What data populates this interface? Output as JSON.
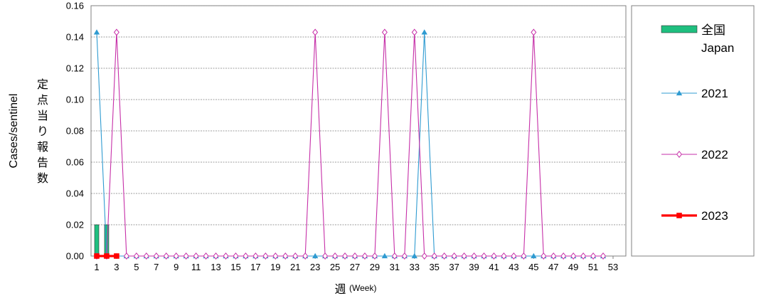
{
  "chart_data": {
    "type": "line",
    "ylabel_en": "Cases/sentinel",
    "ylabel_ja": "定点当り報告数",
    "xlabel_ja": "週",
    "xlabel_en": "(Week)",
    "xlim": [
      1,
      53
    ],
    "ylim": [
      0,
      0.16
    ],
    "y_ticks": [
      "0.00",
      "0.02",
      "0.04",
      "0.06",
      "0.08",
      "0.10",
      "0.12",
      "0.14",
      "0.16"
    ],
    "x_ticks": [
      "1",
      "3",
      "5",
      "7",
      "9",
      "11",
      "13",
      "15",
      "17",
      "19",
      "21",
      "23",
      "25",
      "27",
      "29",
      "31",
      "33",
      "35",
      "37",
      "39",
      "41",
      "43",
      "45",
      "47",
      "49",
      "51",
      "53"
    ],
    "grid": true,
    "legend_position": "right",
    "bars": {
      "name_ja": "全国",
      "name_en": "Japan",
      "color": "#1fbf7f",
      "x": [
        1,
        2
      ],
      "values": [
        0.02,
        0.02
      ]
    },
    "series": [
      {
        "name": "2021",
        "color": "#2f9bd1",
        "marker": "triangle",
        "x": [
          1,
          2,
          3,
          4,
          5,
          6,
          7,
          8,
          9,
          10,
          11,
          12,
          13,
          14,
          15,
          16,
          17,
          18,
          19,
          20,
          21,
          22,
          23,
          24,
          25,
          26,
          27,
          28,
          29,
          30,
          31,
          32,
          33,
          34,
          35,
          36,
          37,
          38,
          39,
          40,
          41,
          42,
          43,
          44,
          45,
          46,
          47,
          48,
          49,
          50,
          51,
          52
        ],
        "values": [
          0.143,
          0,
          0,
          0,
          0,
          0,
          0,
          0,
          0,
          0,
          0,
          0,
          0,
          0,
          0,
          0,
          0,
          0,
          0,
          0,
          0,
          0,
          0,
          0,
          0,
          0,
          0,
          0,
          0,
          0,
          0,
          0,
          0,
          0.143,
          0,
          0,
          0,
          0,
          0,
          0,
          0,
          0,
          0,
          0,
          0,
          0,
          0,
          0,
          0,
          0,
          0,
          0
        ]
      },
      {
        "name": "2022",
        "color": "#c62fa8",
        "marker": "diamond",
        "x": [
          1,
          2,
          3,
          4,
          5,
          6,
          7,
          8,
          9,
          10,
          11,
          12,
          13,
          14,
          15,
          16,
          17,
          18,
          19,
          20,
          21,
          22,
          23,
          24,
          25,
          26,
          27,
          28,
          29,
          30,
          31,
          32,
          33,
          34,
          35,
          36,
          37,
          38,
          39,
          40,
          41,
          42,
          43,
          44,
          45,
          46,
          47,
          48,
          49,
          50,
          51,
          52
        ],
        "values": [
          0,
          0,
          0.143,
          0,
          0,
          0,
          0,
          0,
          0,
          0,
          0,
          0,
          0,
          0,
          0,
          0,
          0,
          0,
          0,
          0,
          0,
          0,
          0.143,
          0,
          0,
          0,
          0,
          0,
          0,
          0.143,
          0,
          0,
          0.143,
          0,
          0,
          0,
          0,
          0,
          0,
          0,
          0,
          0,
          0,
          0,
          0.143,
          0,
          0,
          0,
          0,
          0,
          0,
          0
        ]
      },
      {
        "name": "2023",
        "color": "#ff0000",
        "marker": "square",
        "x": [
          1,
          2,
          3
        ],
        "values": [
          0,
          0,
          0
        ]
      }
    ]
  }
}
